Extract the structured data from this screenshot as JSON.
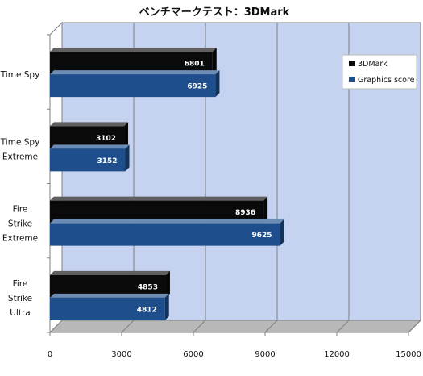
{
  "chart_data": {
    "type": "bar",
    "orientation": "horizontal",
    "title": "ベンチマークテスト：3DMark",
    "categories": [
      [
        "Time Spy"
      ],
      [
        "Time Spy",
        "Extreme"
      ],
      [
        "Fire",
        "Strike",
        "Extreme"
      ],
      [
        "Fire",
        "Strike",
        "Ultra"
      ]
    ],
    "series": [
      {
        "name": "3DMark",
        "values": [
          6801,
          3102,
          8936,
          4853
        ],
        "color": "#0a0a0a"
      },
      {
        "name": "Graphics score",
        "values": [
          6925,
          3152,
          9625,
          4812
        ],
        "color": "#1f4e8c"
      }
    ],
    "xlim": [
      0,
      15000
    ],
    "ticks": [
      0,
      3000,
      6000,
      9000,
      12000,
      15000
    ],
    "tick_labels": [
      "0",
      "3000",
      "6000",
      "9000",
      "12000",
      "15000"
    ],
    "grid": true,
    "legend": "top-right",
    "plot_background": "#c5d3f0",
    "floor_color": "#b8b8b8"
  }
}
